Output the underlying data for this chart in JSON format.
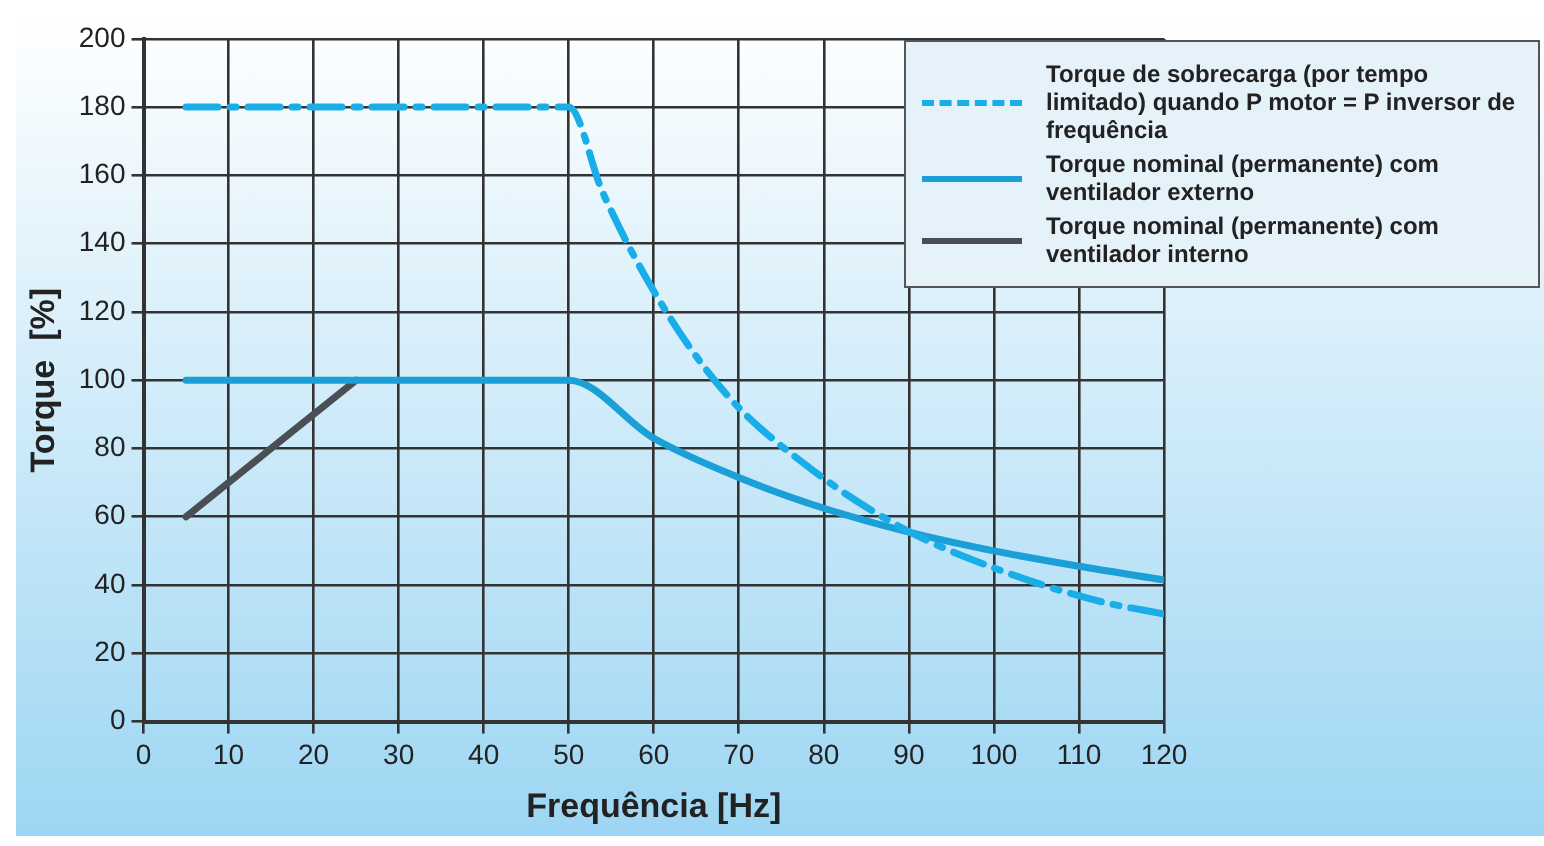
{
  "chart_data": {
    "type": "line",
    "xlabel": "Frequência [Hz]",
    "ylabel": "Torque  [%]",
    "xlim": [
      0,
      120
    ],
    "xticks": [
      0,
      10,
      20,
      30,
      40,
      50,
      60,
      70,
      80,
      90,
      100,
      110,
      120
    ],
    "ylim": [
      0,
      200
    ],
    "yticks": [
      0,
      20,
      40,
      60,
      80,
      100,
      120,
      140,
      160,
      180,
      200
    ],
    "grid": true,
    "legend": "top right",
    "marker": "none",
    "series": [
      {
        "name": "Torque de sobrecarga (por tempo limitado) quando P motor = P inversor de frequência",
        "color": "#1aaee8",
        "line_style": "dashed",
        "x": [
          5,
          50,
          54,
          60.5,
          68.5,
          78.5,
          89,
          100,
          112,
          120
        ],
        "values": [
          180,
          180,
          155,
          124,
          96,
          74,
          57,
          45,
          35.5,
          31.5
        ]
      },
      {
        "name": "Torque nominal (permanente) com ventilador externo",
        "color": "#1a9fd6",
        "line_style": "solid",
        "x": [
          5,
          50,
          60,
          70,
          80,
          90,
          100,
          110,
          120
        ],
        "values": [
          100,
          100,
          83,
          71.5,
          62.5,
          55.5,
          50,
          45.5,
          41.5
        ]
      },
      {
        "name": "Torque nominal (permanente) com ventilador interno",
        "color": "#4a4f55",
        "line_style": "solid",
        "x": [
          5,
          25
        ],
        "values": [
          60,
          100
        ]
      }
    ]
  }
}
